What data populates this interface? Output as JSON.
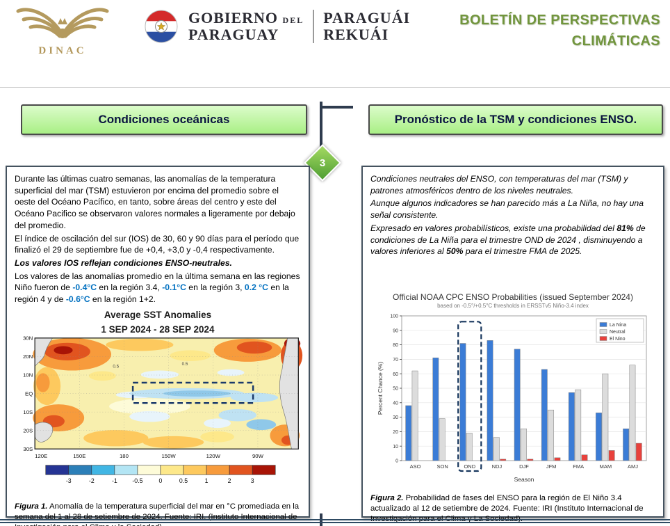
{
  "header": {
    "dinac_label": "DINAC",
    "gov": {
      "es1": "GOBIERNO",
      "es_del": "DEL",
      "es2": "PARAGUAY",
      "gn1": "PARAGUÁI",
      "gn2": "REKUÁI"
    },
    "bulletin_title_line1": "BOLETÍN DE PERSPECTIVAS",
    "bulletin_title_line2": "CLIMÁTICAS"
  },
  "connector": {
    "page_number": "3"
  },
  "left_panel": {
    "header": "Condiciones oceánicas",
    "p1": "Durante las últimas cuatro semanas, las anomalías de la  temperatura superficial del mar (TSM) estuvieron por encima del promedio sobre el oeste del Océano Pacífico, en tanto, sobre áreas del centro y este del Océano Pacifico se observaron valores normales a ligeramente por debajo del promedio.",
    "p2": "El índice de oscilación del sur (IOS) de 30, 60 y 90 días para el período que finalizó el 29 de septiembre fue de +0,4, +3,0 y -0,4 respectivamente.",
    "p3": "Los valores IOS reflejan condiciones ENSO-neutrales.",
    "p4": {
      "t1": "Los valores de las anomalías promedio en la última semana en las regiones Niño fueron de ",
      "v1": "-0.4°C",
      "t2": " en la región 3.4, ",
      "v2": "-0.1°C",
      "t3": " en la región 3, ",
      "v3": "0.2 °C",
      "t4": " en la región 4 y de ",
      "v4": "-0.6°C",
      "t5": " en la región 1+2."
    },
    "figure_caption": {
      "label": "Figura 1.",
      "text": " Anomalía de la temperatura superficial del mar en °C promediada en la semana del 1 al 28 de setiembre de 2024. Fuente: IRI. (Instituto Internacional de Investigación para el Clima y la Sociedad)."
    }
  },
  "right_panel": {
    "header": "Pronóstico de la TSM y condiciones ENSO.",
    "p1": "Condiciones neutrales del ENSO, con temperaturas del mar (TSM) y patrones atmosféricos dentro de los niveles neutrales.",
    "p2": "Aunque algunos indicadores se han parecido más a La Niña, no hay una señal consistente.",
    "p3": {
      "t1": "Expresado en valores probabilísticos, existe una probabilidad del ",
      "v1": "81%",
      "t2": " de condiciones de La Niña para el trimestre OND de 2024 , disminuyendo a valores inferiores al ",
      "v2": "50%",
      "t3": " para el trimestre FMA de 2025."
    },
    "figure_caption": {
      "label": "Figura 2.",
      "text": " Probabilidad de fases del ENSO para la región de El Niño 3.4 actualizado al 12 de setiembre de 2024. Fuente: IRI (Instituto Internacional de Investigación para el Clima y La Sociedad)."
    }
  },
  "chart_data": [
    {
      "type": "heatmap",
      "title": "Average SST Anomalies",
      "subtitle": "1 SEP 2024 - 28 SEP 2024",
      "xlabel_ticks": [
        "120E",
        "150E",
        "180",
        "150W",
        "120W",
        "90W"
      ],
      "ylabel_ticks": [
        "30N",
        "20N",
        "10N",
        "EQ",
        "10S",
        "20S",
        "30S"
      ],
      "contour_label": "0.5",
      "colorbar": {
        "labels": [
          "-3",
          "-2",
          "-1",
          "-0.5",
          "0",
          "0.5",
          "1",
          "2",
          "3"
        ],
        "colors": [
          "#253494",
          "#2c7fb8",
          "#41b6e4",
          "#b3e5f4",
          "#fdfbd8",
          "#fde88a",
          "#fdc95e",
          "#f79b3c",
          "#e1541f",
          "#a81406"
        ]
      }
    },
    {
      "type": "bar",
      "title": "Official NOAA CPC ENSO Probabilities (issued September 2024)",
      "subtitle": "based on -0.5°/+0.5°C thresholds in ERSSTv5 Niño-3.4 index",
      "categories": [
        "ASO",
        "SON",
        "OND",
        "NDJ",
        "DJF",
        "JFM",
        "FMA",
        "MAM",
        "AMJ"
      ],
      "series": [
        {
          "name": "La Nina",
          "color": "#3b7cd6",
          "values": [
            38,
            71,
            81,
            83,
            77,
            63,
            47,
            33,
            22
          ]
        },
        {
          "name": "Neutral",
          "color": "#dcdcdc",
          "values": [
            62,
            29,
            19,
            16,
            22,
            35,
            49,
            60,
            66
          ]
        },
        {
          "name": "El Nino",
          "color": "#e8413c",
          "values": [
            0,
            0,
            0,
            1,
            1,
            2,
            4,
            7,
            12
          ]
        }
      ],
      "xlabel": "Season",
      "ylabel": "Percent Chance (%)",
      "ylim": [
        0,
        100
      ],
      "yticks": [
        0,
        10,
        20,
        30,
        40,
        50,
        60,
        70,
        80,
        90,
        100
      ],
      "highlight_category": "OND",
      "legend_position": "top-right"
    }
  ]
}
